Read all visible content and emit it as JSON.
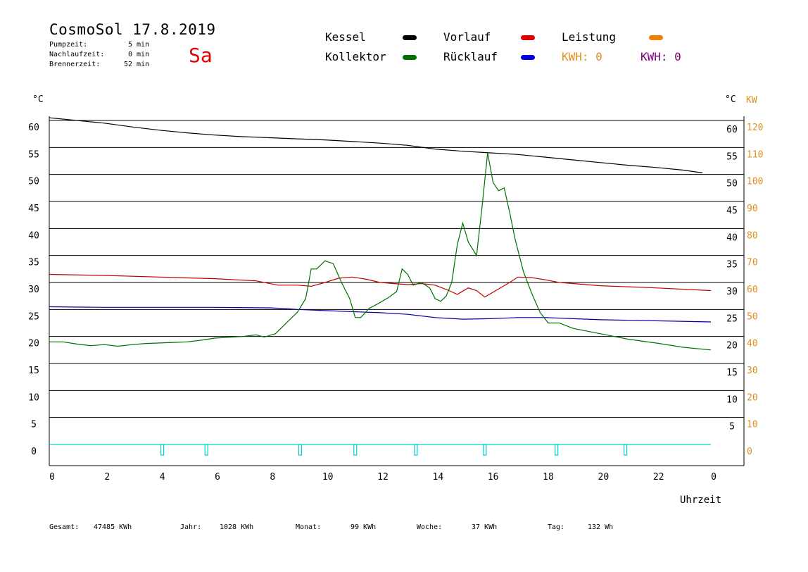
{
  "header": {
    "title": "CosmoSol 17.8.2019",
    "day": "Sa",
    "stats": [
      {
        "label": "Pumpzeit:",
        "value": "5 min"
      },
      {
        "label": "Nachlaufzeit:",
        "value": "0 min"
      },
      {
        "label": "Brennerzeit:",
        "value": "52 min"
      }
    ]
  },
  "legend": {
    "kessel": "Kessel",
    "kollektor": "Kollektor",
    "vorlauf": "Vorlauf",
    "ruecklauf": "Rücklauf",
    "leistung": "Leistung",
    "kwh1": "KWH: 0",
    "kwh2": "KWH: 0"
  },
  "colors": {
    "kessel": "#000000",
    "kollektor": "#007000",
    "vorlauf": "#c00000",
    "ruecklauf": "#0000a0",
    "leistung": "#f08000",
    "kwh1": "#e09020",
    "kwh2": "#800080",
    "pump": "#00d0d0"
  },
  "footer": [
    {
      "label": "Gesamt:",
      "value": "47485 KWh"
    },
    {
      "label": "Jahr:",
      "value": "1028 KWh"
    },
    {
      "label": "Monat:",
      "value": "99 KWh"
    },
    {
      "label": "Woche:",
      "value": "37 KWh"
    },
    {
      "label": "Tag:",
      "value": "132 Wh"
    }
  ],
  "chart_data": {
    "type": "line",
    "xlabel": "Uhrzeit",
    "ylabel_left": "°C",
    "ylabel_right": [
      "°C",
      "KW"
    ],
    "xlim": [
      0,
      24
    ],
    "ylim": [
      0,
      60
    ],
    "grid": "horizontal",
    "x_ticks": [
      "0",
      "2",
      "4",
      "6",
      "8",
      "10",
      "12",
      "14",
      "16",
      "18",
      "20",
      "22",
      "0"
    ],
    "y_ticks": [
      "0",
      "5",
      "10",
      "15",
      "20",
      "25",
      "30",
      "35",
      "40",
      "45",
      "50",
      "55",
      "60"
    ],
    "y_right_c_ticks": [
      "5",
      "10",
      "15",
      "20",
      "25",
      "30",
      "35",
      "40",
      "45",
      "50",
      "55",
      "60"
    ],
    "y_right_kw_ticks": [
      "0",
      "10",
      "20",
      "30",
      "40",
      "50",
      "60",
      "70",
      "80",
      "90",
      "100",
      "110",
      "120"
    ],
    "series": [
      {
        "name": "Kessel",
        "color": "#000000",
        "points": [
          [
            0,
            60.5
          ],
          [
            1,
            60
          ],
          [
            2,
            59.5
          ],
          [
            3,
            58.8
          ],
          [
            4,
            58.2
          ],
          [
            5,
            57.7
          ],
          [
            6,
            57.3
          ],
          [
            7,
            57
          ],
          [
            8,
            56.8
          ],
          [
            9,
            56.6
          ],
          [
            10,
            56.4
          ],
          [
            11,
            56.1
          ],
          [
            12,
            55.8
          ],
          [
            13,
            55.4
          ],
          [
            14,
            54.7
          ],
          [
            15,
            54.3
          ],
          [
            16,
            54
          ],
          [
            17,
            53.7
          ],
          [
            18,
            53.2
          ],
          [
            19,
            52.7
          ],
          [
            20,
            52.2
          ],
          [
            21,
            51.7
          ],
          [
            22,
            51.3
          ],
          [
            23,
            50.8
          ],
          [
            23.7,
            50.3
          ]
        ]
      },
      {
        "name": "Vorlauf",
        "color": "#c00000",
        "points": [
          [
            0,
            31.5
          ],
          [
            2,
            31.3
          ],
          [
            4,
            31
          ],
          [
            6,
            30.7
          ],
          [
            7.5,
            30.3
          ],
          [
            8.3,
            29.5
          ],
          [
            9,
            29.5
          ],
          [
            9.5,
            29.3
          ],
          [
            10,
            30
          ],
          [
            10.5,
            30.8
          ],
          [
            11,
            31
          ],
          [
            11.5,
            30.6
          ],
          [
            12,
            30
          ],
          [
            13,
            29.6
          ],
          [
            13.5,
            29.8
          ],
          [
            14,
            29.5
          ],
          [
            14.5,
            28.5
          ],
          [
            14.8,
            27.8
          ],
          [
            15.2,
            29
          ],
          [
            15.5,
            28.5
          ],
          [
            15.8,
            27.3
          ],
          [
            16.2,
            28.5
          ],
          [
            16.7,
            30
          ],
          [
            17,
            31
          ],
          [
            17.5,
            30.9
          ],
          [
            18,
            30.5
          ],
          [
            18.5,
            30
          ],
          [
            20,
            29.4
          ],
          [
            22,
            29
          ],
          [
            24,
            28.5
          ]
        ]
      },
      {
        "name": "Rücklauf",
        "color": "#0000a0",
        "points": [
          [
            0,
            25.5
          ],
          [
            2,
            25.4
          ],
          [
            4,
            25.4
          ],
          [
            6,
            25.4
          ],
          [
            8,
            25.3
          ],
          [
            8.5,
            25.2
          ],
          [
            9,
            25
          ],
          [
            10,
            24.8
          ],
          [
            11,
            24.6
          ],
          [
            12,
            24.4
          ],
          [
            13,
            24.1
          ],
          [
            13.5,
            23.8
          ],
          [
            14,
            23.5
          ],
          [
            15,
            23.2
          ],
          [
            16,
            23.3
          ],
          [
            17,
            23.5
          ],
          [
            18,
            23.5
          ],
          [
            19,
            23.3
          ],
          [
            20,
            23.1
          ],
          [
            22,
            22.9
          ],
          [
            24,
            22.7
          ]
        ]
      },
      {
        "name": "Kollektor",
        "color": "#007000",
        "points": [
          [
            0,
            19
          ],
          [
            0.5,
            19
          ],
          [
            1,
            18.6
          ],
          [
            1.5,
            18.3
          ],
          [
            2,
            18.5
          ],
          [
            2.5,
            18.2
          ],
          [
            3,
            18.5
          ],
          [
            3.5,
            18.7
          ],
          [
            4,
            18.8
          ],
          [
            5,
            19
          ],
          [
            5.5,
            19.3
          ],
          [
            6,
            19.7
          ],
          [
            7,
            20
          ],
          [
            7.5,
            20.3
          ],
          [
            7.8,
            19.9
          ],
          [
            8.2,
            20.5
          ],
          [
            8.5,
            22
          ],
          [
            8.8,
            23.5
          ],
          [
            9,
            24.5
          ],
          [
            9.3,
            27
          ],
          [
            9.5,
            32.5
          ],
          [
            9.7,
            32.5
          ],
          [
            10,
            34
          ],
          [
            10.3,
            33.5
          ],
          [
            10.6,
            30
          ],
          [
            10.9,
            27
          ],
          [
            11.1,
            23.5
          ],
          [
            11.3,
            23.5
          ],
          [
            11.6,
            25.2
          ],
          [
            11.9,
            26
          ],
          [
            12.3,
            27.2
          ],
          [
            12.6,
            28.3
          ],
          [
            12.8,
            32.5
          ],
          [
            13,
            31.5
          ],
          [
            13.2,
            29.5
          ],
          [
            13.5,
            30
          ],
          [
            13.8,
            29
          ],
          [
            14,
            27
          ],
          [
            14.2,
            26.5
          ],
          [
            14.4,
            27.5
          ],
          [
            14.6,
            30
          ],
          [
            14.8,
            37
          ],
          [
            15,
            41
          ],
          [
            15.2,
            37.5
          ],
          [
            15.5,
            35
          ],
          [
            15.7,
            44
          ],
          [
            15.9,
            54
          ],
          [
            16.1,
            48.5
          ],
          [
            16.3,
            47
          ],
          [
            16.5,
            47.5
          ],
          [
            16.7,
            43
          ],
          [
            16.9,
            38
          ],
          [
            17.2,
            32
          ],
          [
            17.5,
            28
          ],
          [
            17.8,
            24.5
          ],
          [
            18.1,
            22.5
          ],
          [
            18.5,
            22.5
          ],
          [
            19,
            21.5
          ],
          [
            20,
            20.5
          ],
          [
            21,
            19.5
          ],
          [
            22,
            18.8
          ],
          [
            23,
            18
          ],
          [
            24,
            17.5
          ]
        ]
      },
      {
        "name": "Pumpe",
        "color": "#00d0d0",
        "note": "pump pulses along 0",
        "points": [
          [
            4.1,
            0
          ],
          [
            5.7,
            0
          ],
          [
            9.1,
            0
          ],
          [
            11.1,
            0
          ],
          [
            13.3,
            0
          ],
          [
            15.8,
            0
          ],
          [
            18.4,
            0
          ],
          [
            20.9,
            0
          ]
        ]
      }
    ]
  }
}
